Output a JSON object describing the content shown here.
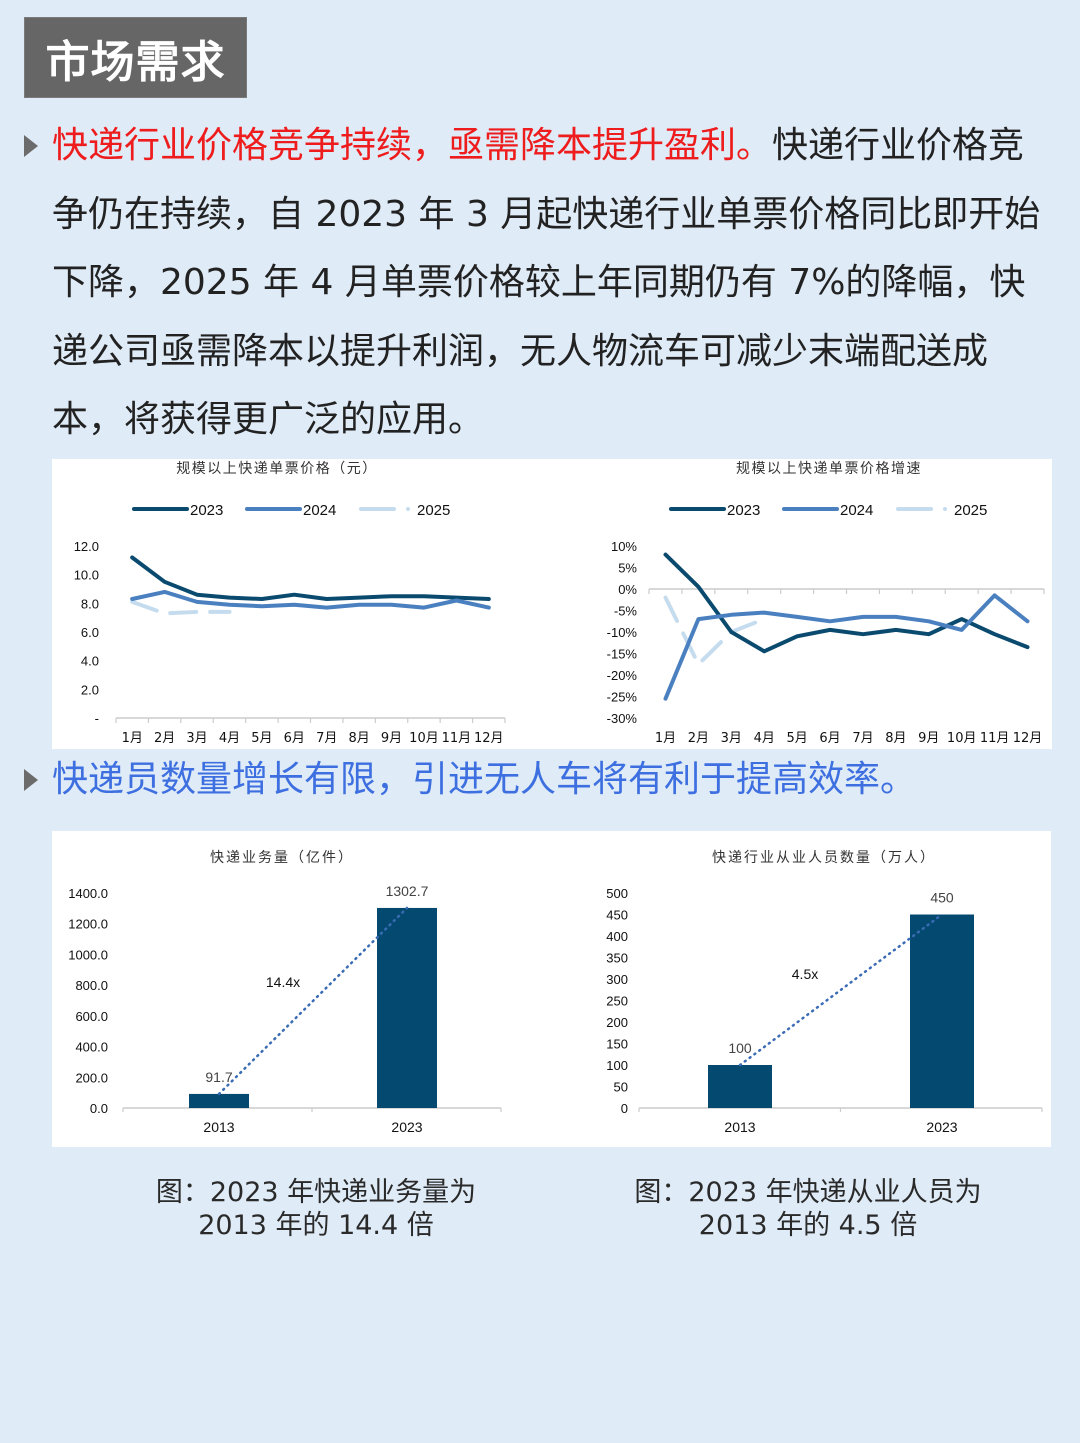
{
  "header": {
    "title": "市场需求"
  },
  "section1": {
    "highlight": "快递行业价格竞争持续，亟需降本提升盈利。",
    "body": "快递行业价格竞争仍在持续，自 2023 年 3 月起快递行业单票价格同比即开始下降，2025 年 4 月单票价格较上年同期仍有 7%的降幅，快递公司亟需降本以提升利润，无人物流车可减少末端配送成本，将获得更广泛的应用。"
  },
  "section2": {
    "heading": "快递员数量增长有限，引进无人车将有利于提高效率。"
  },
  "captions": {
    "left_line1": "图：2023 年快递业务量为",
    "left_line2": "2013 年的 14.4 倍",
    "right_line1": "图：2023 年快递从业人员为",
    "right_line2": "2013 年的 4.5 倍"
  },
  "colors": {
    "s2023": "#0b4a6f",
    "s2024": "#4a80bf",
    "s2025": "#c5dcef",
    "bar": "#044a70",
    "red": "#ee1c1c",
    "blue_heading": "#3d6fe0",
    "background": "#dfebf7"
  },
  "chart_data": [
    {
      "type": "line",
      "title": "规模以上快递单票价格（元）",
      "categories": [
        "1月",
        "2月",
        "3月",
        "4月",
        "5月",
        "6月",
        "7月",
        "8月",
        "9月",
        "10月",
        "11月",
        "12月"
      ],
      "series": [
        {
          "name": "2023",
          "values": [
            11.2,
            9.5,
            8.6,
            8.4,
            8.3,
            8.6,
            8.3,
            8.4,
            8.5,
            8.5,
            8.4,
            8.3
          ]
        },
        {
          "name": "2024",
          "values": [
            8.3,
            8.8,
            8.1,
            7.9,
            7.8,
            7.9,
            7.7,
            7.9,
            7.9,
            7.7,
            8.2,
            7.7
          ]
        },
        {
          "name": "2025",
          "values": [
            8.1,
            7.3,
            7.4,
            7.4
          ]
        }
      ],
      "yticks": [
        "12.0",
        "10.0",
        "8.0",
        "6.0",
        "4.0",
        "2.0",
        "-"
      ],
      "ylim": [
        0,
        12
      ],
      "legend_position": "top"
    },
    {
      "type": "line",
      "title": "规模以上快递单票价格增速",
      "categories": [
        "1月",
        "2月",
        "3月",
        "4月",
        "5月",
        "6月",
        "7月",
        "8月",
        "9月",
        "10月",
        "11月",
        "12月"
      ],
      "series": [
        {
          "name": "2023",
          "values": [
            8,
            0.5,
            -10,
            -14.5,
            -11,
            -9.5,
            -10.5,
            -9.5,
            -10.5,
            -7,
            -10.5,
            -13.5
          ]
        },
        {
          "name": "2024",
          "values": [
            -25.5,
            -7,
            -6,
            -5.5,
            -6.5,
            -7.5,
            -6.5,
            -6.5,
            -7.5,
            -9.5,
            -1.5,
            -7.5
          ]
        },
        {
          "name": "2025",
          "values": [
            -2,
            -17.5,
            -10,
            -7
          ]
        }
      ],
      "yticks": [
        "10%",
        "5%",
        "0%",
        "-5%",
        "-10%",
        "-15%",
        "-20%",
        "-25%",
        "-30%"
      ],
      "ylim": [
        -30,
        10
      ],
      "legend_position": "top"
    },
    {
      "type": "bar",
      "title": "快递业务量（亿件）",
      "categories": [
        "2013",
        "2023"
      ],
      "values": [
        91.7,
        1302.7
      ],
      "value_labels": [
        "91.7",
        "1302.7"
      ],
      "annotation": "14.4x",
      "yticks": [
        "1400.0",
        "1200.0",
        "1000.0",
        "800.0",
        "600.0",
        "400.0",
        "200.0",
        "0.0"
      ],
      "ylim": [
        0,
        1400
      ]
    },
    {
      "type": "bar",
      "title": "快递行业从业人员数量（万人）",
      "categories": [
        "2013",
        "2023"
      ],
      "values": [
        100,
        450
      ],
      "value_labels": [
        "100",
        "450"
      ],
      "annotation": "4.5x",
      "yticks": [
        "500",
        "450",
        "400",
        "350",
        "300",
        "250",
        "200",
        "150",
        "100",
        "50",
        "0"
      ],
      "ylim": [
        0,
        500
      ]
    }
  ]
}
